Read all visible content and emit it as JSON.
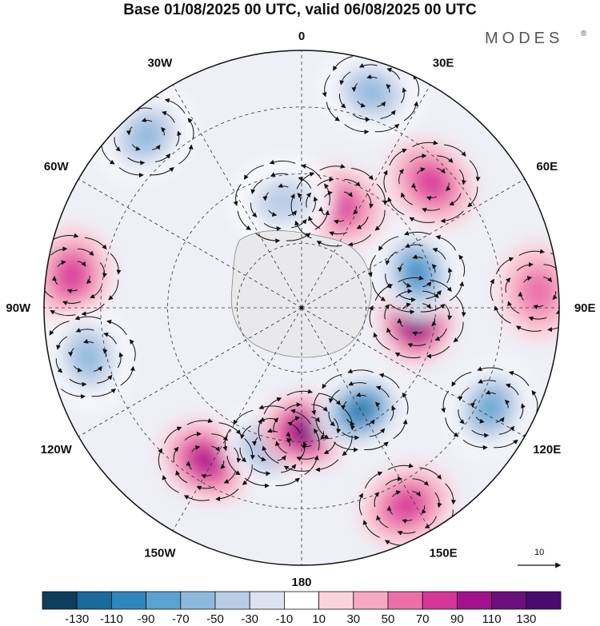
{
  "title": "Base 01/08/2025 00 UTC, valid 06/08/2025 00 UTC",
  "brand": "MODES",
  "brand_mark": "®",
  "reference_vector_label": "10",
  "chart_data": {
    "type": "heatmap",
    "projection": "south-polar-stereographic",
    "title": "Base 01/08/2025 00 UTC, valid 06/08/2025 00 UTC",
    "longitude_labels": [
      {
        "label": "0",
        "lon": 0
      },
      {
        "label": "30E",
        "lon": 30
      },
      {
        "label": "60E",
        "lon": 60
      },
      {
        "label": "90E",
        "lon": 90
      },
      {
        "label": "120E",
        "lon": 120
      },
      {
        "label": "150E",
        "lon": 150
      },
      {
        "label": "180",
        "lon": 180
      },
      {
        "label": "150W",
        "lon": -150
      },
      {
        "label": "120W",
        "lon": -120
      },
      {
        "label": "90W",
        "lon": -90
      },
      {
        "label": "60W",
        "lon": -60
      },
      {
        "label": "30W",
        "lon": -30
      }
    ],
    "colorbar": {
      "tick_labels": [
        "-130",
        "-110",
        "-90",
        "-70",
        "-50",
        "-30",
        "-10",
        "10",
        "30",
        "50",
        "70",
        "90",
        "110",
        "130"
      ],
      "colors": [
        "#0c3d5c",
        "#1a6a9a",
        "#2f86bf",
        "#5aa2cf",
        "#8db9dd",
        "#b9cce6",
        "#dde2f0",
        "#ffffff",
        "#fbd3dc",
        "#f5a9c2",
        "#ec6fa8",
        "#d6359a",
        "#a3128a",
        "#6b0f7a",
        "#4a0a6e"
      ]
    },
    "anomaly_centers": [
      {
        "lon": 18,
        "dist": 0.88,
        "value": -70
      },
      {
        "lon": -42,
        "dist": 0.9,
        "value": -60
      },
      {
        "lon": -82,
        "dist": 0.9,
        "value": 70
      },
      {
        "lon": -103,
        "dist": 0.85,
        "value": -60
      },
      {
        "lon": -148,
        "dist": 0.7,
        "value": 90
      },
      {
        "lon": -168,
        "dist": 0.55,
        "value": -80
      },
      {
        "lon": 178,
        "dist": 0.48,
        "value": 110
      },
      {
        "lon": 150,
        "dist": 0.46,
        "value": -120
      },
      {
        "lon": 118,
        "dist": 0.83,
        "value": -90
      },
      {
        "lon": 95,
        "dist": 0.45,
        "value": 120
      },
      {
        "lon": 73,
        "dist": 0.47,
        "value": -110
      },
      {
        "lon": 46,
        "dist": 0.7,
        "value": 60
      },
      {
        "lon": 20,
        "dist": 0.42,
        "value": 70
      },
      {
        "lon": -10,
        "dist": 0.42,
        "value": -40
      },
      {
        "lon": 152,
        "dist": 0.87,
        "value": 70
      },
      {
        "lon": 86,
        "dist": 0.92,
        "value": 50
      }
    ],
    "reference_vector": 10
  }
}
